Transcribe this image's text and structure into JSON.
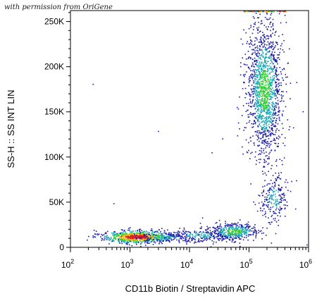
{
  "watermark": "with permission from OriGene",
  "chart_data": {
    "type": "scatter",
    "subtype": "flow-cytometry-density-dot-plot",
    "xlabel": "CD11b Biotin / Streptavidin APC",
    "ylabel": "SS-H :: SS INT LIN",
    "x_scale": "log",
    "xlim": [
      100,
      1000000
    ],
    "ylim": [
      0,
      262144
    ],
    "x_ticks": [
      {
        "value": 100,
        "base": "10",
        "exp": "2"
      },
      {
        "value": 1000,
        "base": "10",
        "exp": "3"
      },
      {
        "value": 10000,
        "base": "10",
        "exp": "4"
      },
      {
        "value": 100000,
        "base": "10",
        "exp": "5"
      },
      {
        "value": 1000000,
        "base": "10",
        "exp": "6"
      }
    ],
    "y_ticks": [
      {
        "value": 0,
        "label": "0"
      },
      {
        "value": 50000,
        "label": "50K"
      },
      {
        "value": 100000,
        "label": "100K"
      },
      {
        "value": 150000,
        "label": "150K"
      },
      {
        "value": 200000,
        "label": "200K"
      },
      {
        "value": 250000,
        "label": "250K"
      }
    ],
    "populations": [
      {
        "center_x": 1300,
        "center_y": 12000,
        "spread_log_x": 0.28,
        "spread_y": 3500,
        "count": 700,
        "density": "high"
      },
      {
        "center_x": 3500,
        "center_y": 12000,
        "spread_log_x": 0.3,
        "spread_y": 3500,
        "count": 180,
        "density": "low"
      },
      {
        "center_x": 15000,
        "center_y": 14000,
        "spread_log_x": 0.3,
        "spread_y": 4000,
        "count": 200,
        "density": "low"
      },
      {
        "center_x": 55000,
        "center_y": 18000,
        "spread_log_x": 0.22,
        "spread_y": 5000,
        "count": 420,
        "density": "medium"
      },
      {
        "center_x": 180000,
        "center_y": 175000,
        "spread_log_x": 0.15,
        "spread_y": 38000,
        "count": 1500,
        "density": "medium"
      },
      {
        "center_x": 260000,
        "center_y": 55000,
        "spread_log_x": 0.12,
        "spread_y": 14000,
        "count": 220,
        "density": "low"
      },
      {
        "center_x": 30000,
        "center_y": 120000,
        "spread_log_x": 1.1,
        "spread_y": 70000,
        "count": 12,
        "density": "sparse"
      }
    ],
    "colors": {
      "low": "#1a1aaa",
      "medium": "#19a8b4",
      "high": "#e31b1b",
      "mid_high": "#33cc33",
      "top": "#f0b400"
    },
    "grid": false,
    "legend": "none"
  }
}
